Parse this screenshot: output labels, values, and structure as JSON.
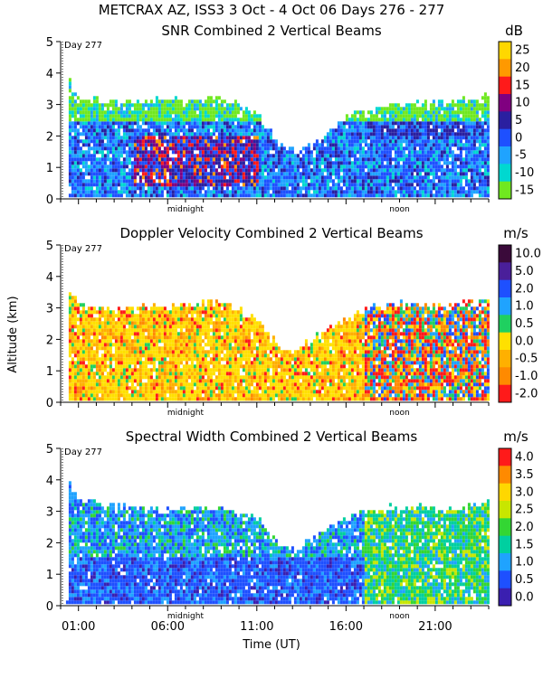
{
  "header": {
    "title": "METCRAX AZ, ISS3   3 Oct -  4 Oct 06 Days 276 - 277"
  },
  "shared": {
    "day_label": "Day 277",
    "midnight_label": "midnight",
    "noon_label": "noon",
    "y_axis_label": "Altitude (km)",
    "x_axis_label": "Time (UT)",
    "x_tick_labels": [
      "01:00",
      "06:00",
      "11:00",
      "16:00",
      "21:00"
    ],
    "x_tick_hours": [
      1,
      6,
      11,
      16,
      21
    ],
    "x_range_hours": [
      0,
      24
    ],
    "midnight_hour": 7,
    "noon_hour": 19,
    "y_ticks": [
      0,
      1,
      2,
      3,
      4,
      5
    ],
    "y_tick_labels": [
      "0",
      "1",
      "2",
      "3",
      "4",
      "5"
    ],
    "y_range_km": [
      0,
      5
    ]
  },
  "chart_data": [
    {
      "type": "heatmap",
      "title": "SNR Combined 2 Vertical Beams",
      "units": "dB",
      "xlabel": "Time (UT)",
      "ylabel": "Altitude (km)",
      "colorbar": {
        "labels": [
          "25",
          "20",
          "15",
          "10",
          "5",
          "0",
          "-5",
          "-10",
          "-15"
        ],
        "colors": [
          "#ffd700",
          "#ff9900",
          "#ff1a1a",
          "#800080",
          "#2a1fa0",
          "#1e50ff",
          "#1fa3ff",
          "#00d8d0",
          "#70e820"
        ]
      },
      "profile": [
        {
          "t": 0.3,
          "top": 3.9
        },
        {
          "t": 1,
          "top": 3.1
        },
        {
          "t": 3,
          "top": 3.0
        },
        {
          "t": 5,
          "top": 3.1
        },
        {
          "t": 7,
          "top": 3.1
        },
        {
          "t": 9,
          "top": 3.2
        },
        {
          "t": 11,
          "top": 2.6
        },
        {
          "t": 12,
          "top": 1.8
        },
        {
          "t": 13,
          "top": 1.4
        },
        {
          "t": 14,
          "top": 1.6
        },
        {
          "t": 15,
          "top": 2.1
        },
        {
          "t": 16,
          "top": 2.5
        },
        {
          "t": 17,
          "top": 2.8
        },
        {
          "t": 19,
          "top": 3.0
        },
        {
          "t": 21,
          "top": 3.0
        },
        {
          "t": 23,
          "top": 3.1
        },
        {
          "t": 24,
          "top": 3.2
        }
      ]
    },
    {
      "type": "heatmap",
      "title": "Doppler Velocity Combined 2 Vertical Beams",
      "units": "m/s",
      "xlabel": "Time (UT)",
      "ylabel": "Altitude (km)",
      "colorbar": {
        "labels": [
          "10.0",
          "5.0",
          "2.0",
          "1.0",
          "0.5",
          "0.0",
          "-0.5",
          "-1.0",
          "-2.0"
        ],
        "colors": [
          "#3a0a3a",
          "#4a1f9a",
          "#1e50ff",
          "#1fa3ff",
          "#1fd060",
          "#ffe000",
          "#ffb000",
          "#ff8a00",
          "#ff1a1a"
        ]
      },
      "profile": [
        {
          "t": 0.3,
          "top": 3.7
        },
        {
          "t": 1,
          "top": 3.0
        },
        {
          "t": 3,
          "top": 2.9
        },
        {
          "t": 5,
          "top": 3.0
        },
        {
          "t": 7,
          "top": 3.0
        },
        {
          "t": 9,
          "top": 3.1
        },
        {
          "t": 11,
          "top": 2.6
        },
        {
          "t": 12,
          "top": 1.8
        },
        {
          "t": 13,
          "top": 1.6
        },
        {
          "t": 14,
          "top": 1.9
        },
        {
          "t": 15,
          "top": 2.3
        },
        {
          "t": 16,
          "top": 2.6
        },
        {
          "t": 17,
          "top": 2.9
        },
        {
          "t": 19,
          "top": 3.1
        },
        {
          "t": 21,
          "top": 3.0
        },
        {
          "t": 23,
          "top": 3.1
        },
        {
          "t": 24,
          "top": 3.1
        }
      ]
    },
    {
      "type": "heatmap",
      "title": "Spectral Width Combined 2 Vertical Beams",
      "units": "m/s",
      "xlabel": "Time (UT)",
      "ylabel": "Altitude (km)",
      "colorbar": {
        "labels": [
          "4.0",
          "3.5",
          "3.0",
          "2.5",
          "2.0",
          "1.5",
          "1.0",
          "0.5",
          "0.0"
        ],
        "colors": [
          "#ff1a1a",
          "#ff8a00",
          "#ffd700",
          "#c8e600",
          "#33d633",
          "#00cfa0",
          "#1fa3ff",
          "#1e50ff",
          "#3a1fb0"
        ]
      },
      "profile": [
        {
          "t": 0.3,
          "top": 3.9
        },
        {
          "t": 1,
          "top": 3.3
        },
        {
          "t": 3,
          "top": 3.1
        },
        {
          "t": 5,
          "top": 3.0
        },
        {
          "t": 7,
          "top": 3.0
        },
        {
          "t": 9,
          "top": 3.1
        },
        {
          "t": 11,
          "top": 2.7
        },
        {
          "t": 12,
          "top": 2.0
        },
        {
          "t": 13,
          "top": 1.7
        },
        {
          "t": 14,
          "top": 2.0
        },
        {
          "t": 15,
          "top": 2.4
        },
        {
          "t": 16,
          "top": 2.7
        },
        {
          "t": 17,
          "top": 2.9
        },
        {
          "t": 19,
          "top": 3.1
        },
        {
          "t": 21,
          "top": 3.0
        },
        {
          "t": 23,
          "top": 3.1
        },
        {
          "t": 24,
          "top": 3.2
        }
      ]
    }
  ]
}
